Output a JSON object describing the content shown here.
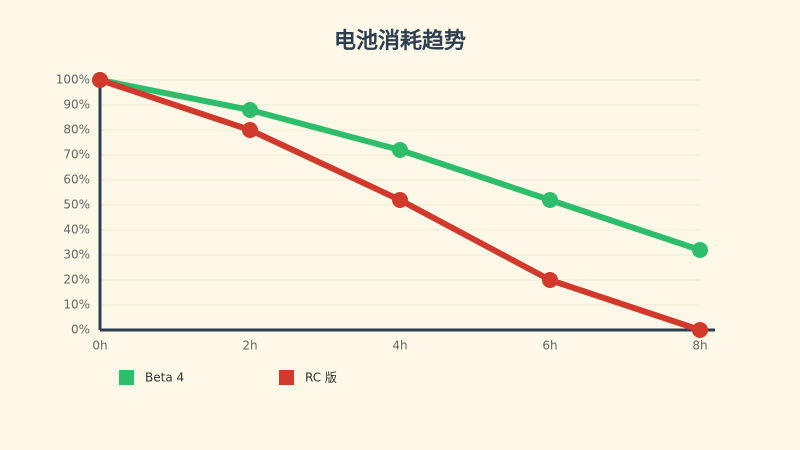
{
  "chart_data": {
    "type": "line",
    "title": "电池消耗趋势",
    "categories": [
      "0h",
      "2h",
      "4h",
      "6h",
      "8h"
    ],
    "series": [
      {
        "name": "Beta 4",
        "color": "#2ebd6b",
        "values": [
          100,
          88,
          72,
          52,
          32
        ]
      },
      {
        "name": "RC 版",
        "color": "#d0392b",
        "values": [
          100,
          80,
          52,
          20,
          0
        ]
      }
    ],
    "ylim": [
      0,
      100
    ],
    "yticks": [
      {
        "value": 0,
        "label": "0%"
      },
      {
        "value": 10,
        "label": "10%"
      },
      {
        "value": 20,
        "label": "20%"
      },
      {
        "value": 30,
        "label": "30%"
      },
      {
        "value": 40,
        "label": "40%"
      },
      {
        "value": 50,
        "label": "50%"
      },
      {
        "value": 60,
        "label": "60%"
      },
      {
        "value": 70,
        "label": "70%"
      },
      {
        "value": 80,
        "label": "80%"
      },
      {
        "value": 90,
        "label": "90%"
      },
      {
        "value": 100,
        "label": "100%"
      }
    ],
    "grid": true
  }
}
